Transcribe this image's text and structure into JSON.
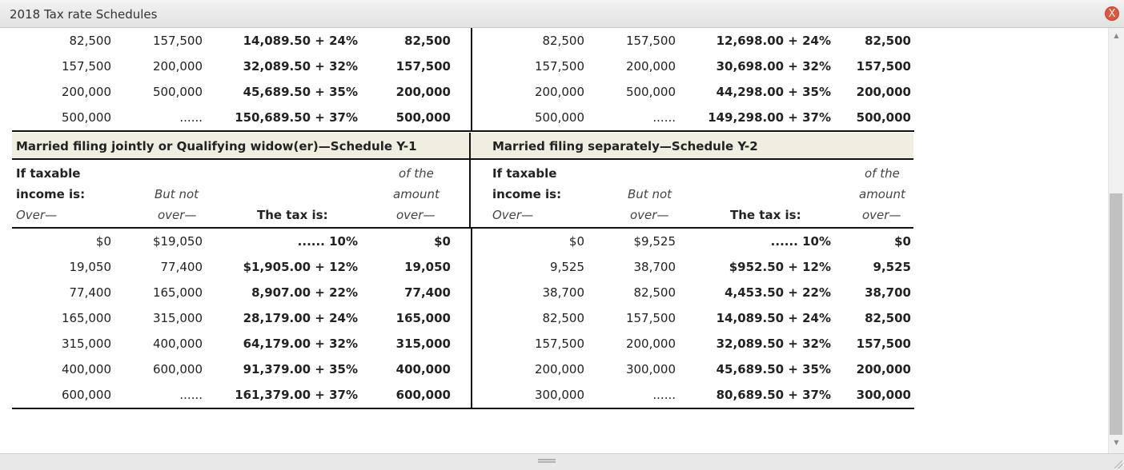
{
  "window": {
    "title": "2018 Tax rate Schedules",
    "close_icon": "X"
  },
  "top_rows": [
    {
      "l_over": "82,500",
      "l_notover": "157,500",
      "l_tax": "14,089.50 + 24%",
      "l_amount": "82,500",
      "r_over": "82,500",
      "r_notover": "157,500",
      "r_tax": "12,698.00 + 24%",
      "r_amount": "82,500"
    },
    {
      "l_over": "157,500",
      "l_notover": "200,000",
      "l_tax": "32,089.50 + 32%",
      "l_amount": "157,500",
      "r_over": "157,500",
      "r_notover": "200,000",
      "r_tax": "30,698.00 + 32%",
      "r_amount": "157,500"
    },
    {
      "l_over": "200,000",
      "l_notover": "500,000",
      "l_tax": "45,689.50 + 35%",
      "l_amount": "200,000",
      "r_over": "200,000",
      "r_notover": "500,000",
      "r_tax": "44,298.00 + 35%",
      "r_amount": "200,000"
    },
    {
      "l_over": "500,000",
      "l_notover": "......",
      "l_tax": "150,689.50 + 37%",
      "l_amount": "500,000",
      "r_over": "500,000",
      "r_notover": "......",
      "r_tax": "149,298.00 + 37%",
      "r_amount": "500,000"
    }
  ],
  "schedule_headers": {
    "left": "Married filing jointly or Qualifying widow(er)—Schedule Y-1",
    "right": "Married filing separately—Schedule Y-2"
  },
  "column_headers": {
    "if_taxable": "If taxable",
    "income_is": "income is:",
    "over": "Over—",
    "but_not": "But not",
    "over2": "over—",
    "tax_is": "The tax is:",
    "of_the": "of the",
    "amount": "amount",
    "over3": "over—"
  },
  "bottom_rows": [
    {
      "l_over": "$0",
      "l_notover": "$19,050",
      "l_tax": "...... 10%",
      "l_amount": "$0",
      "r_over": "$0",
      "r_notover": "$9,525",
      "r_tax": "...... 10%",
      "r_amount": "$0"
    },
    {
      "l_over": "19,050",
      "l_notover": "77,400",
      "l_tax": "$1,905.00 + 12%",
      "l_amount": "19,050",
      "r_over": "9,525",
      "r_notover": "38,700",
      "r_tax": "$952.50 + 12%",
      "r_amount": "9,525"
    },
    {
      "l_over": "77,400",
      "l_notover": "165,000",
      "l_tax": "8,907.00 + 22%",
      "l_amount": "77,400",
      "r_over": "38,700",
      "r_notover": "82,500",
      "r_tax": "4,453.50 + 22%",
      "r_amount": "38,700"
    },
    {
      "l_over": "165,000",
      "l_notover": "315,000",
      "l_tax": "28,179.00 + 24%",
      "l_amount": "165,000",
      "r_over": "82,500",
      "r_notover": "157,500",
      "r_tax": "14,089.50 + 24%",
      "r_amount": "82,500"
    },
    {
      "l_over": "315,000",
      "l_notover": "400,000",
      "l_tax": "64,179.00 + 32%",
      "l_amount": "315,000",
      "r_over": "157,500",
      "r_notover": "200,000",
      "r_tax": "32,089.50 + 32%",
      "r_amount": "157,500"
    },
    {
      "l_over": "400,000",
      "l_notover": "600,000",
      "l_tax": "91,379.00 + 35%",
      "l_amount": "400,000",
      "r_over": "200,000",
      "r_notover": "300,000",
      "r_tax": "45,689.50 + 35%",
      "r_amount": "200,000"
    },
    {
      "l_over": "600,000",
      "l_notover": "......",
      "l_tax": "161,379.00 + 37%",
      "l_amount": "600,000",
      "r_over": "300,000",
      "r_notover": "......",
      "r_tax": "80,689.50 + 37%",
      "r_amount": "300,000"
    }
  ],
  "colors": {
    "header_band": "#efeee0",
    "close_button": "#e2543e",
    "rule": "#111111"
  }
}
